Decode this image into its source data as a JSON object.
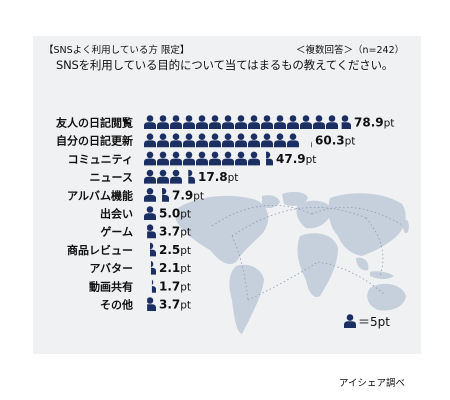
{
  "header": {
    "filter_label": "【SNSよく利用している方 限定】",
    "answer_type": "＜複数回答＞（n=242）",
    "question": "SNSを利用している目的について当てはまるもの教えてください。"
  },
  "legend": {
    "label": "＝5pt"
  },
  "source": "アイシェア調べ",
  "colors": {
    "icon": "#1c2f63",
    "map": "#c6cfdc",
    "panel": "#f0f1f3"
  },
  "chart_data": {
    "type": "bar",
    "unit": "pt",
    "icon_value": 5,
    "categories": [
      "友人の日記閲覧",
      "自分の日記更新",
      "コミュニティ",
      "ニュース",
      "アルバム機能",
      "出会い",
      "ゲーム",
      "商品レビュー",
      "アバター",
      "動画共有",
      "その他"
    ],
    "values": [
      78.9,
      60.3,
      47.9,
      17.8,
      7.9,
      5.0,
      3.7,
      2.5,
      2.1,
      1.7,
      3.7
    ],
    "value_labels": [
      "78.9pt",
      "60.3pt",
      "47.9pt",
      "17.8pt",
      "7.9pt",
      "5.0pt",
      "3.7pt",
      "2.5pt",
      "2.1pt",
      "1.7pt",
      "3.7pt"
    ]
  }
}
